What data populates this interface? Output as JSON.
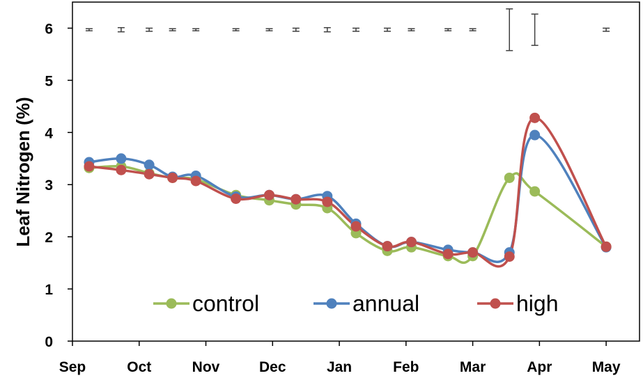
{
  "chart_data": {
    "type": "line",
    "ylabel": "Leaf Nitrogen (%)",
    "xlabel": "",
    "ylim": [
      0,
      6.5
    ],
    "y_ticks": [
      0,
      1,
      2,
      3,
      4,
      5,
      6
    ],
    "month_labels": [
      "Sep",
      "Oct",
      "Nov",
      "Dec",
      "Jan",
      "Feb",
      "Mar",
      "Apr",
      "May"
    ],
    "grid": false,
    "legend_position": "bottom-inside",
    "x": [
      0.25,
      0.73,
      1.15,
      1.5,
      1.85,
      2.45,
      2.95,
      3.35,
      3.82,
      4.25,
      4.72,
      5.08,
      5.63,
      6.0,
      6.55,
      6.93,
      8.0
    ],
    "series": [
      {
        "name": "control",
        "color": "#9BBB59",
        "values": [
          3.32,
          3.35,
          3.22,
          3.13,
          3.1,
          2.8,
          2.7,
          2.62,
          2.55,
          2.07,
          1.73,
          1.8,
          1.63,
          1.63,
          3.13,
          2.87,
          1.81
        ]
      },
      {
        "name": "annual",
        "color": "#4F81BD",
        "values": [
          3.43,
          3.5,
          3.38,
          3.15,
          3.17,
          2.77,
          2.8,
          2.72,
          2.78,
          2.25,
          1.82,
          1.9,
          1.75,
          1.7,
          1.7,
          3.95,
          1.8
        ]
      },
      {
        "name": "high",
        "color": "#C0504D",
        "values": [
          3.35,
          3.28,
          3.2,
          3.13,
          3.07,
          2.73,
          2.8,
          2.72,
          2.67,
          2.2,
          1.82,
          1.9,
          1.67,
          1.7,
          1.62,
          4.28,
          1.81
        ]
      }
    ],
    "error_bars": {
      "center": 5.97,
      "half_widths": [
        0.02,
        0.04,
        0.03,
        0.02,
        0.02,
        0.02,
        0.02,
        0.03,
        0.04,
        0.03,
        0.03,
        0.02,
        0.02,
        0.02,
        0.4,
        0.3,
        0.03
      ],
      "color": "#404040"
    }
  }
}
